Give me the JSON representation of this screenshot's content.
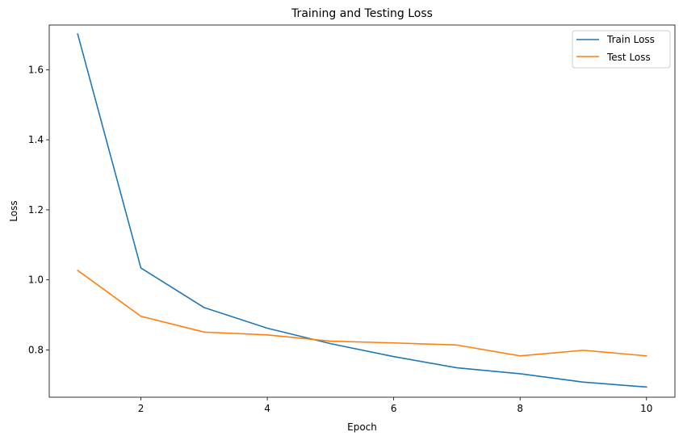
{
  "chart_data": {
    "type": "line",
    "title": "Training and Testing Loss",
    "xlabel": "Epoch",
    "ylabel": "Loss",
    "xlim": [
      0.55,
      10.45
    ],
    "ylim": [
      0.665,
      1.7276
    ],
    "xticks": [
      2,
      4,
      6,
      8,
      10
    ],
    "yticks": [
      0.8,
      1.0,
      1.2,
      1.4,
      1.6
    ],
    "grid": false,
    "legend_position": "top-right",
    "x": [
      1,
      2,
      3,
      4,
      5,
      6,
      7,
      8,
      9,
      10
    ],
    "series": [
      {
        "name": "Train Loss",
        "color": "#1f77b4",
        "values": [
          1.702,
          1.034,
          0.921,
          0.862,
          0.818,
          0.781,
          0.749,
          0.732,
          0.708,
          0.694
        ]
      },
      {
        "name": "Test Loss",
        "color": "#ff7f0e",
        "values": [
          1.027,
          0.896,
          0.851,
          0.843,
          0.825,
          0.82,
          0.814,
          0.783,
          0.799,
          0.783
        ]
      }
    ]
  }
}
